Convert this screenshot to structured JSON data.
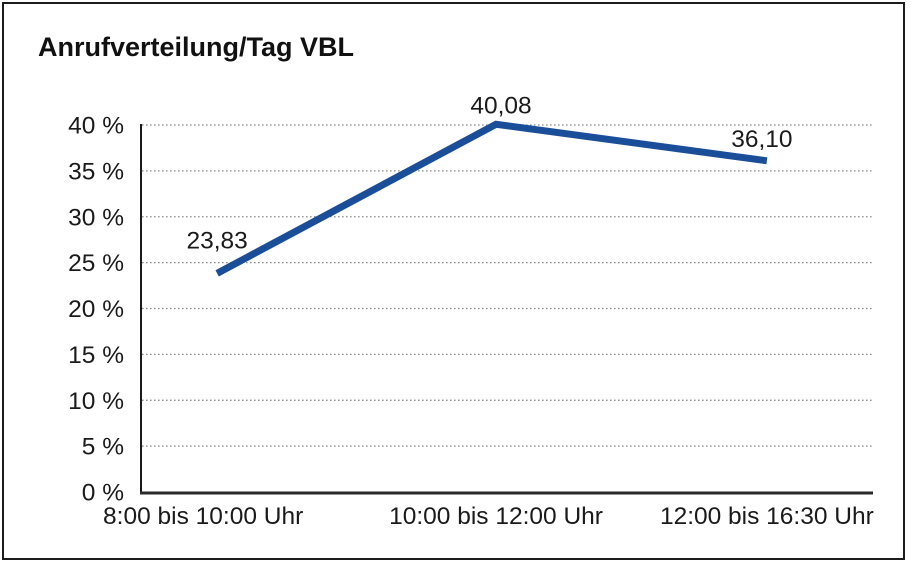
{
  "window": {
    "background": "#ffffff",
    "border_color": "#1c1c1c"
  },
  "chart_data": {
    "type": "line",
    "title": "Anrufverteilung/Tag VBL",
    "categories": [
      "8:00 bis 10:00 Uhr",
      "10:00 bis 12:00 Uhr",
      "12:00 bis 16:30 Uhr"
    ],
    "series": [
      {
        "name": "Anrufverteilung",
        "values": [
          23.83,
          40.08,
          36.1
        ],
        "point_labels": [
          "23,83",
          "40,08",
          "36,10"
        ],
        "color": "#1a4e99"
      }
    ],
    "xlabel": "",
    "ylabel": "",
    "ylim": [
      0,
      40
    ],
    "ytick_step": 5,
    "ytick_labels": [
      "0 %",
      "5 %",
      "10 %",
      "15 %",
      "20 %",
      "25 %",
      "30 %",
      "35 %",
      "40 %"
    ],
    "grid": "horizontal-dotted",
    "gridline_color": "#8a8a8a",
    "axis_color": "#2a2a2a",
    "legend": "none",
    "decimal_separator": ","
  }
}
